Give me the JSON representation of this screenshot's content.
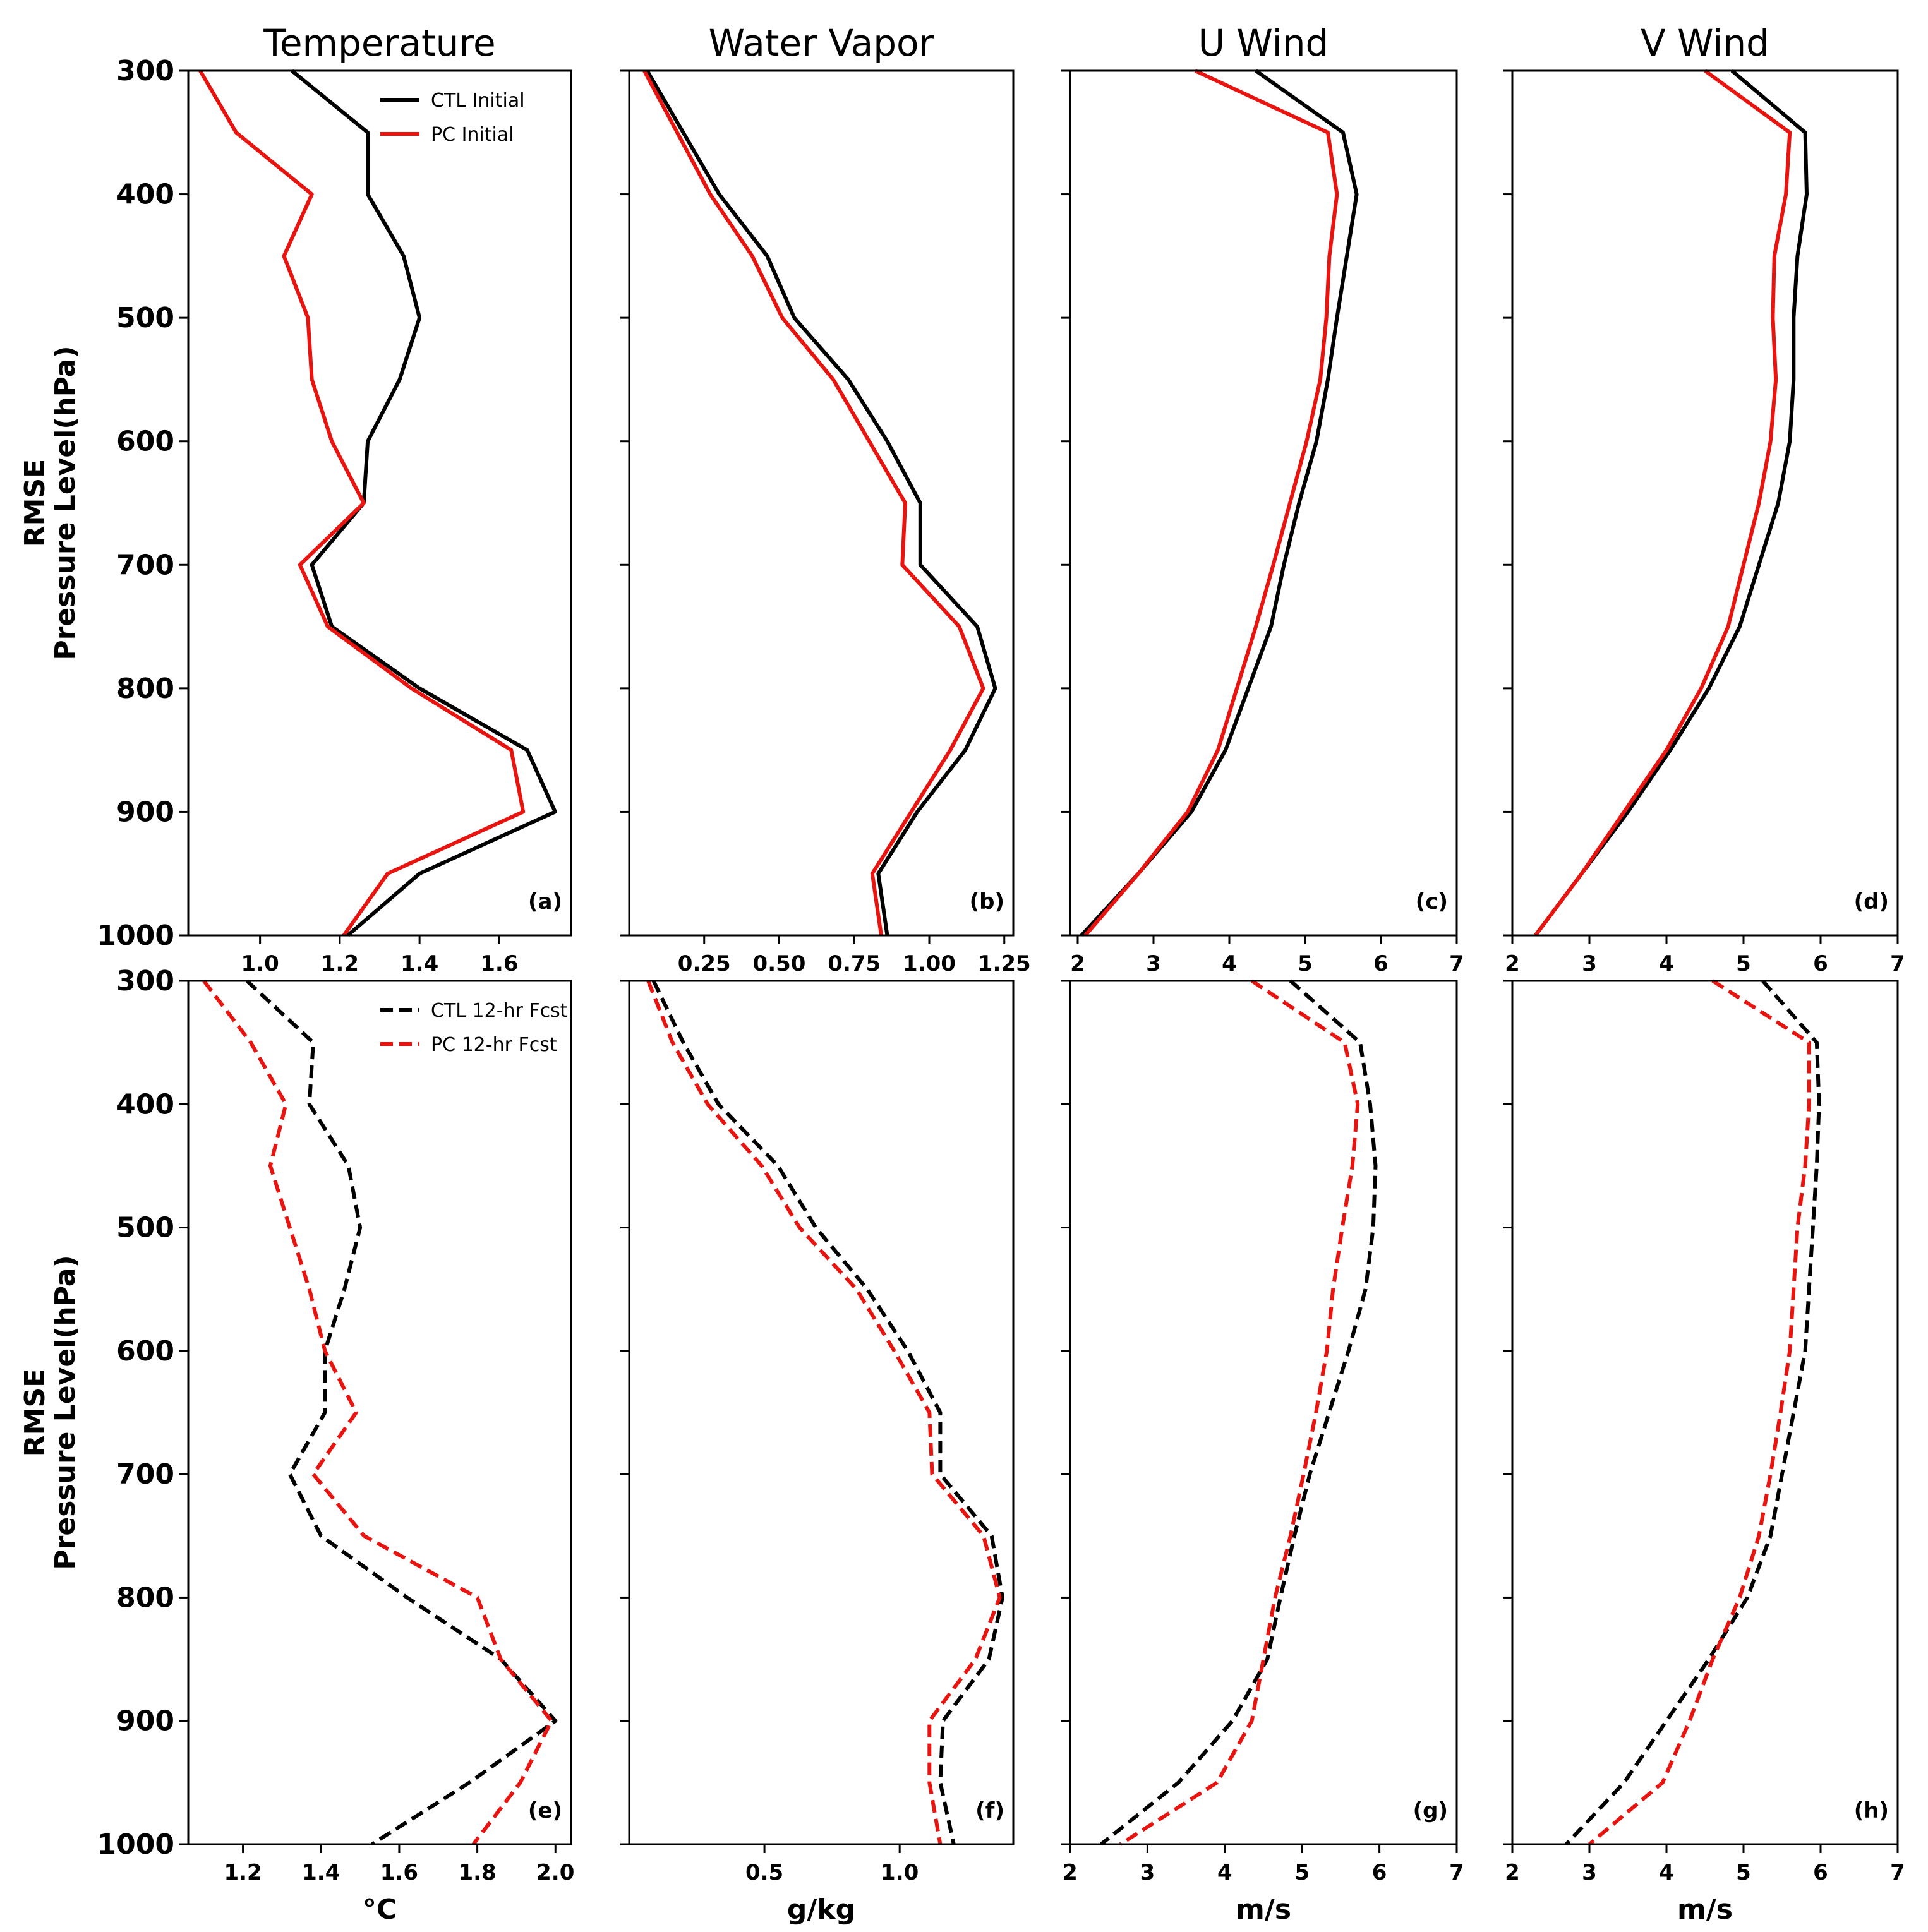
{
  "colors": {
    "ctl": "#000000",
    "pc": "#e8140f",
    "axis": "#000000"
  },
  "chart_data": [
    {
      "type": "line",
      "panel": "(a)",
      "title": "Temperature",
      "ylabel_line1": "RMSE",
      "ylabel_line2": "Pressure Level(hPa)",
      "xlabel": "",
      "xlim": [
        0.82,
        1.78
      ],
      "ylim": [
        1000,
        300
      ],
      "xticks": [
        1.0,
        1.2,
        1.4,
        1.6
      ],
      "xtick_labels": [
        "1.0",
        "1.2",
        "1.4",
        "1.6"
      ],
      "yticks": [
        300,
        400,
        500,
        600,
        700,
        800,
        900,
        1000
      ],
      "ytick_labels": [
        "300",
        "400",
        "500",
        "600",
        "700",
        "800",
        "900",
        "1000"
      ],
      "legend": [
        "CTL Initial",
        "PC  Initial"
      ],
      "pressure": [
        300,
        350,
        400,
        450,
        500,
        550,
        600,
        650,
        700,
        750,
        800,
        850,
        900,
        950,
        1000
      ],
      "series": [
        {
          "name": "CTL Initial",
          "style": "solid",
          "values": [
            1.08,
            1.27,
            1.27,
            1.36,
            1.4,
            1.35,
            1.27,
            1.26,
            1.13,
            1.18,
            1.4,
            1.67,
            1.74,
            1.4,
            1.22
          ]
        },
        {
          "name": "PC  Initial",
          "style": "solid",
          "values": [
            0.85,
            0.94,
            1.13,
            1.06,
            1.12,
            1.13,
            1.18,
            1.26,
            1.1,
            1.17,
            1.38,
            1.63,
            1.66,
            1.32,
            1.21
          ]
        }
      ]
    },
    {
      "type": "line",
      "panel": "(b)",
      "title": "Water Vapor",
      "xlabel": "",
      "xlim": [
        0.0,
        1.28
      ],
      "ylim": [
        1000,
        300
      ],
      "xticks": [
        0.25,
        0.5,
        0.75,
        1.0,
        1.25
      ],
      "xtick_labels": [
        "0.25",
        "0.50",
        "0.75",
        "1.00",
        "1.25"
      ],
      "yticks": [
        300,
        400,
        500,
        600,
        700,
        800,
        900,
        1000
      ],
      "pressure": [
        300,
        350,
        400,
        450,
        500,
        550,
        600,
        650,
        700,
        750,
        800,
        850,
        900,
        950,
        1000
      ],
      "series": [
        {
          "name": "CTL Initial",
          "style": "solid",
          "values": [
            0.06,
            0.18,
            0.3,
            0.46,
            0.55,
            0.73,
            0.86,
            0.97,
            0.97,
            1.16,
            1.22,
            1.12,
            0.96,
            0.83,
            0.86
          ]
        },
        {
          "name": "PC  Initial",
          "style": "solid",
          "values": [
            0.05,
            0.16,
            0.27,
            0.41,
            0.51,
            0.68,
            0.8,
            0.92,
            0.91,
            1.1,
            1.18,
            1.07,
            0.94,
            0.81,
            0.84
          ]
        }
      ]
    },
    {
      "type": "line",
      "panel": "(c)",
      "title": "U Wind",
      "xlabel": "",
      "xlim": [
        1.9,
        7.0
      ],
      "ylim": [
        1000,
        300
      ],
      "xticks": [
        2,
        3,
        4,
        5,
        6,
        7
      ],
      "xtick_labels": [
        "2",
        "3",
        "4",
        "5",
        "6",
        "7"
      ],
      "yticks": [
        300,
        400,
        500,
        600,
        700,
        800,
        900,
        1000
      ],
      "pressure": [
        300,
        350,
        400,
        450,
        500,
        550,
        600,
        650,
        700,
        750,
        800,
        850,
        900,
        950,
        1000
      ],
      "series": [
        {
          "name": "CTL Initial",
          "style": "solid",
          "values": [
            4.35,
            5.5,
            5.68,
            5.55,
            5.42,
            5.3,
            5.15,
            4.92,
            4.72,
            4.55,
            4.25,
            3.95,
            3.5,
            2.8,
            2.05
          ]
        },
        {
          "name": "PC  Initial",
          "style": "solid",
          "values": [
            3.55,
            5.3,
            5.42,
            5.32,
            5.28,
            5.2,
            5.02,
            4.8,
            4.58,
            4.35,
            4.1,
            3.85,
            3.45,
            2.8,
            2.1
          ]
        }
      ]
    },
    {
      "type": "line",
      "panel": "(d)",
      "title": "V Wind",
      "xlabel": "",
      "xlim": [
        2.0,
        7.0
      ],
      "ylim": [
        1000,
        300
      ],
      "xticks": [
        2,
        3,
        4,
        5,
        6,
        7
      ],
      "xtick_labels": [
        "2",
        "3",
        "4",
        "5",
        "6",
        "7"
      ],
      "yticks": [
        300,
        400,
        500,
        600,
        700,
        800,
        900,
        1000
      ],
      "pressure": [
        300,
        350,
        400,
        450,
        500,
        550,
        600,
        650,
        700,
        750,
        800,
        850,
        900,
        950,
        1000
      ],
      "series": [
        {
          "name": "CTL Initial",
          "style": "solid",
          "values": [
            4.85,
            5.8,
            5.82,
            5.7,
            5.65,
            5.65,
            5.6,
            5.45,
            5.2,
            4.95,
            4.55,
            4.05,
            3.5,
            2.9,
            2.3
          ]
        },
        {
          "name": "PC  Initial",
          "style": "solid",
          "values": [
            4.5,
            5.6,
            5.55,
            5.4,
            5.38,
            5.42,
            5.35,
            5.2,
            5.0,
            4.8,
            4.45,
            4.0,
            3.45,
            2.9,
            2.3
          ]
        }
      ]
    },
    {
      "type": "line",
      "panel": "(e)",
      "title": "",
      "ylabel_line1": "RMSE",
      "ylabel_line2": "Pressure Level(hPa)",
      "xlabel": "°C",
      "xlim": [
        1.06,
        2.04
      ],
      "ylim": [
        1000,
        300
      ],
      "xticks": [
        1.2,
        1.4,
        1.6,
        1.8,
        2.0
      ],
      "xtick_labels": [
        "1.2",
        "1.4",
        "1.6",
        "1.8",
        "2.0"
      ],
      "yticks": [
        300,
        400,
        500,
        600,
        700,
        800,
        900,
        1000
      ],
      "ytick_labels": [
        "300",
        "400",
        "500",
        "600",
        "700",
        "800",
        "900",
        "1000"
      ],
      "legend": [
        "CTL 12-hr Fcst",
        "PC  12-hr Fcst"
      ],
      "pressure": [
        300,
        350,
        400,
        450,
        500,
        550,
        600,
        650,
        700,
        750,
        800,
        850,
        900,
        950,
        1000
      ],
      "series": [
        {
          "name": "CTL 12-hr Fcst",
          "style": "dashed",
          "values": [
            1.21,
            1.38,
            1.37,
            1.47,
            1.5,
            1.46,
            1.41,
            1.41,
            1.32,
            1.4,
            1.62,
            1.86,
            2.0,
            1.78,
            1.53
          ]
        },
        {
          "name": "PC  12-hr Fcst",
          "style": "dashed",
          "values": [
            1.1,
            1.22,
            1.31,
            1.27,
            1.32,
            1.37,
            1.41,
            1.49,
            1.38,
            1.51,
            1.8,
            1.86,
            1.99,
            1.91,
            1.79
          ]
        }
      ]
    },
    {
      "type": "line",
      "panel": "(f)",
      "title": "",
      "xlabel": "g/kg",
      "xlim": [
        0.0,
        1.42
      ],
      "ylim": [
        1000,
        300
      ],
      "xticks": [
        0.5,
        1.0
      ],
      "xtick_labels": [
        "0.5",
        "1.0"
      ],
      "yticks": [
        300,
        400,
        500,
        600,
        700,
        800,
        900,
        1000
      ],
      "pressure": [
        300,
        350,
        400,
        450,
        500,
        550,
        600,
        650,
        700,
        750,
        800,
        850,
        900,
        950,
        1000
      ],
      "series": [
        {
          "name": "CTL 12-hr Fcst",
          "style": "dashed",
          "values": [
            0.09,
            0.2,
            0.33,
            0.55,
            0.69,
            0.88,
            1.03,
            1.15,
            1.15,
            1.34,
            1.38,
            1.33,
            1.16,
            1.15,
            1.2
          ]
        },
        {
          "name": "PC  12-hr Fcst",
          "style": "dashed",
          "values": [
            0.07,
            0.16,
            0.29,
            0.49,
            0.63,
            0.84,
            0.98,
            1.11,
            1.12,
            1.31,
            1.37,
            1.28,
            1.11,
            1.11,
            1.15
          ]
        }
      ]
    },
    {
      "type": "line",
      "panel": "(g)",
      "title": "",
      "xlabel": "m/s",
      "xlim": [
        2.0,
        7.0
      ],
      "ylim": [
        1000,
        300
      ],
      "xticks": [
        2,
        3,
        4,
        5,
        6,
        7
      ],
      "xtick_labels": [
        "2",
        "3",
        "4",
        "5",
        "6",
        "7"
      ],
      "yticks": [
        300,
        400,
        500,
        600,
        700,
        800,
        900,
        1000
      ],
      "pressure": [
        300,
        350,
        400,
        450,
        500,
        550,
        600,
        650,
        700,
        750,
        800,
        850,
        900,
        950,
        1000
      ],
      "series": [
        {
          "name": "CTL 12-hr Fcst",
          "style": "dashed",
          "values": [
            4.85,
            5.75,
            5.88,
            5.95,
            5.92,
            5.82,
            5.6,
            5.35,
            5.1,
            4.9,
            4.72,
            4.55,
            4.1,
            3.4,
            2.4
          ]
        },
        {
          "name": "PC  12-hr Fcst",
          "style": "dashed",
          "values": [
            4.35,
            5.55,
            5.72,
            5.65,
            5.52,
            5.4,
            5.32,
            5.18,
            5.02,
            4.85,
            4.65,
            4.5,
            4.35,
            3.9,
            2.65
          ]
        }
      ]
    },
    {
      "type": "line",
      "panel": "(h)",
      "title": "",
      "xlabel": "m/s",
      "xlim": [
        2.0,
        7.0
      ],
      "ylim": [
        1000,
        300
      ],
      "xticks": [
        2,
        3,
        4,
        5,
        6,
        7
      ],
      "xtick_labels": [
        "2",
        "3",
        "4",
        "5",
        "6",
        "7"
      ],
      "yticks": [
        300,
        400,
        500,
        600,
        700,
        800,
        900,
        1000
      ],
      "pressure": [
        300,
        350,
        400,
        450,
        500,
        550,
        600,
        650,
        700,
        750,
        800,
        850,
        900,
        950,
        1000
      ],
      "series": [
        {
          "name": "CTL 12-hr Fcst",
          "style": "dashed",
          "values": [
            5.25,
            5.95,
            5.98,
            5.95,
            5.9,
            5.85,
            5.8,
            5.65,
            5.5,
            5.35,
            5.05,
            4.55,
            4.0,
            3.45,
            2.7
          ]
        },
        {
          "name": "PC  12-hr Fcst",
          "style": "dashed",
          "values": [
            4.6,
            5.85,
            5.85,
            5.8,
            5.7,
            5.65,
            5.6,
            5.48,
            5.35,
            5.2,
            4.95,
            4.6,
            4.3,
            3.95,
            3.0
          ]
        }
      ]
    }
  ]
}
